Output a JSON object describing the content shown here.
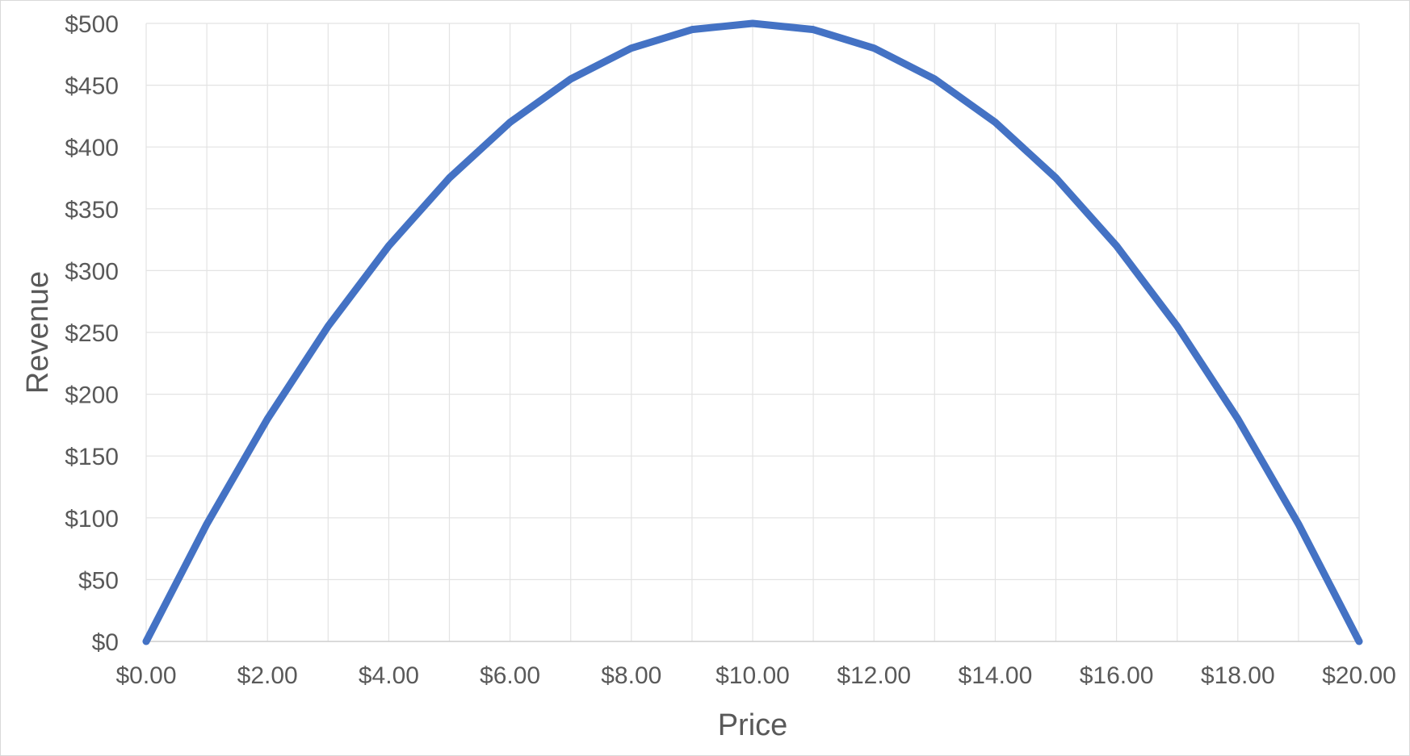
{
  "chart_data": {
    "type": "line",
    "title": "",
    "xlabel": "Price",
    "ylabel": "Revenue",
    "xlim": [
      0,
      20
    ],
    "ylim": [
      0,
      500
    ],
    "x_ticks": [
      0,
      2,
      4,
      6,
      8,
      10,
      12,
      14,
      16,
      18,
      20
    ],
    "x_tick_labels": [
      "$0.00",
      "$2.00",
      "$4.00",
      "$6.00",
      "$8.00",
      "$10.00",
      "$12.00",
      "$14.00",
      "$16.00",
      "$18.00",
      "$20.00"
    ],
    "y_ticks": [
      0,
      50,
      100,
      150,
      200,
      250,
      300,
      350,
      400,
      450,
      500
    ],
    "y_tick_labels": [
      "$0",
      "$50",
      "$100",
      "$150",
      "$200",
      "$250",
      "$300",
      "$350",
      "$400",
      "$450",
      "$500"
    ],
    "grid": true,
    "legend": "none",
    "series": [
      {
        "color": "#4472c4",
        "x": [
          0,
          1,
          2,
          3,
          4,
          5,
          6,
          7,
          8,
          9,
          10,
          11,
          12,
          13,
          14,
          15,
          16,
          17,
          18,
          19,
          20
        ],
        "values": [
          0,
          95,
          180,
          255,
          320,
          375,
          420,
          455,
          480,
          495,
          500,
          495,
          480,
          455,
          420,
          375,
          320,
          255,
          180,
          95,
          0
        ]
      }
    ]
  }
}
